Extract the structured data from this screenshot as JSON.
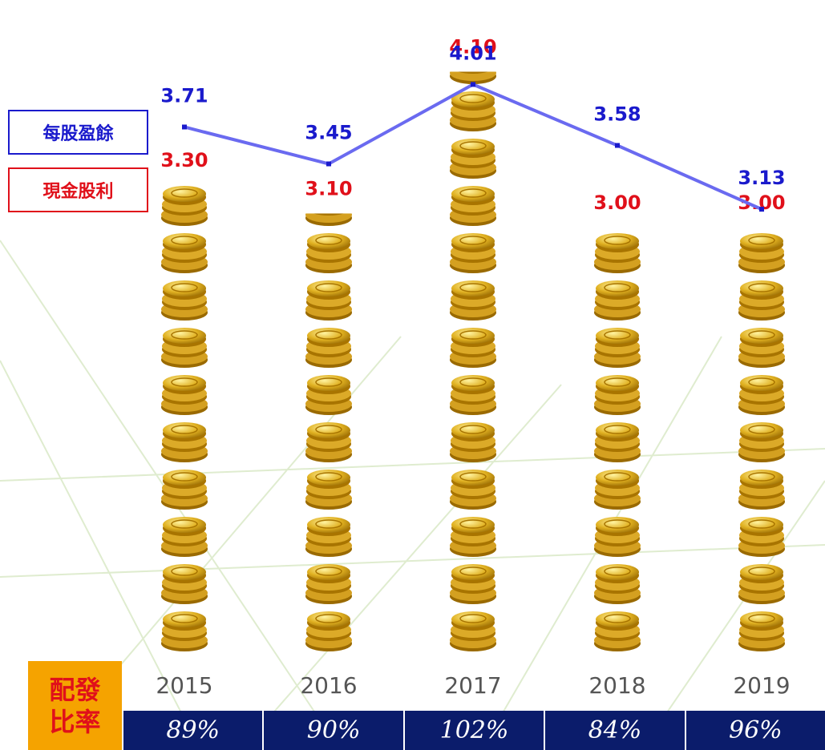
{
  "chart_data": {
    "type": "bar",
    "categories": [
      "2015",
      "2016",
      "2017",
      "2018",
      "2019"
    ],
    "ylim": [
      0,
      4.6
    ],
    "series": [
      {
        "name": "現金股利",
        "type": "bar",
        "color": "#e0101a",
        "values": [
          3.3,
          3.1,
          4.1,
          3.0,
          3.0
        ],
        "value_labels": [
          "3.30",
          "3.10",
          "4.10",
          "3.00",
          "3.00"
        ]
      },
      {
        "name": "每股盈餘",
        "type": "line",
        "color": "#6a6af0",
        "label_color": "#1a1acc",
        "values": [
          3.71,
          3.45,
          4.01,
          3.58,
          3.13
        ]
      }
    ],
    "payout_ratio": {
      "label": "配發比率",
      "values": [
        89,
        90,
        102,
        84,
        96
      ],
      "value_labels": [
        "89%",
        "90%",
        "102%",
        "84%",
        "96%"
      ]
    }
  }
}
